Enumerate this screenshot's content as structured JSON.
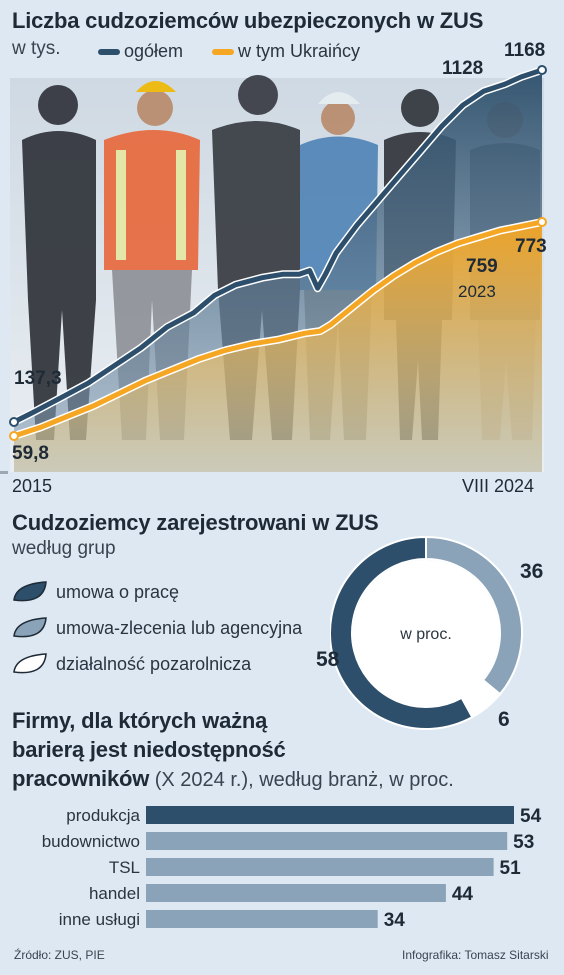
{
  "colors": {
    "background": "#dde8f3",
    "dark_blue": "#2d4f6b",
    "mid_blue": "#8aa3b9",
    "orange": "#f5a623",
    "text": "#1e2a36"
  },
  "section1": {
    "title": "Liczba cudzoziemców ubezpieczonych w ZUS",
    "unit": "w tys.",
    "legend": [
      {
        "label": "ogółem",
        "color": "#2d4f6b"
      },
      {
        "label": "w tym Ukraińcy",
        "color": "#f5a623"
      }
    ],
    "start_label": "2015",
    "end_label": "VIII 2024",
    "annotations": {
      "total_start": "137,3",
      "ukr_start": "59,8",
      "total_2023": "1128",
      "total_end": "1168",
      "ukr_2023": "759",
      "ukr_2023_year": "2023",
      "ukr_end": "773"
    }
  },
  "section2": {
    "title": "Cudzoziemcy zarejestrowani w ZUS",
    "subtitle": "według grup",
    "center_label": "w proc.",
    "legend": [
      {
        "label": "umowa o pracę",
        "color": "#2d4f6b"
      },
      {
        "label": "umowa-zlecenia lub agencyjna",
        "color": "#8aa3b9"
      },
      {
        "label": "działalność pozarolnicza",
        "color": "#ffffff"
      }
    ]
  },
  "section3": {
    "title_line1": "Firmy, dla których ważną",
    "title_line2": "barierą jest niedostępność",
    "title_line3_bold": "pracowników",
    "title_line3_rest": " (X 2024 r.), według branż, w proc."
  },
  "footer": {
    "source": "Źródło: ZUS, PIE",
    "credit": "Infografika: Tomasz Sitarski"
  },
  "chart_data": [
    {
      "type": "line",
      "title": "Liczba cudzoziemców ubezpieczonych w ZUS",
      "ylabel": "w tys.",
      "x": [
        "2015",
        "VIII 2024"
      ],
      "series": [
        {
          "name": "ogółem",
          "values": [
            137.3,
            1168
          ],
          "labeled_points": [
            {
              "x": "2015",
              "y": 137.3
            },
            {
              "x": "2023",
              "y": 1128
            },
            {
              "x": "VIII 2024",
              "y": 1168
            }
          ]
        },
        {
          "name": "w tym Ukraińcy",
          "values": [
            59.8,
            773
          ],
          "labeled_points": [
            {
              "x": "2015",
              "y": 59.8
            },
            {
              "x": "2023",
              "y": 759
            },
            {
              "x": "VIII 2024",
              "y": 773
            }
          ]
        }
      ]
    },
    {
      "type": "pie",
      "title": "Cudzoziemcy zarejestrowani w ZUS",
      "subtitle": "według grup",
      "slices": [
        {
          "label": "umowa o pracę",
          "value": 58,
          "color": "#2d4f6b"
        },
        {
          "label": "umowa-zlecenia lub agencyjna",
          "value": 36,
          "color": "#8aa3b9"
        },
        {
          "label": "działalność pozarolnicza",
          "value": 6,
          "color": "#ffffff"
        }
      ]
    },
    {
      "type": "bar",
      "title": "Firmy, dla których ważną barierą jest niedostępność pracowników (X 2024 r.), według branż, w proc.",
      "categories": [
        "produkcja",
        "budownictwo",
        "TSL",
        "handel",
        "inne usługi"
      ],
      "values": [
        54,
        53,
        51,
        44,
        34
      ],
      "colors": [
        "#2d4f6b",
        "#8aa3b9",
        "#8aa3b9",
        "#8aa3b9",
        "#8aa3b9"
      ],
      "xlim": [
        0,
        54
      ]
    }
  ]
}
